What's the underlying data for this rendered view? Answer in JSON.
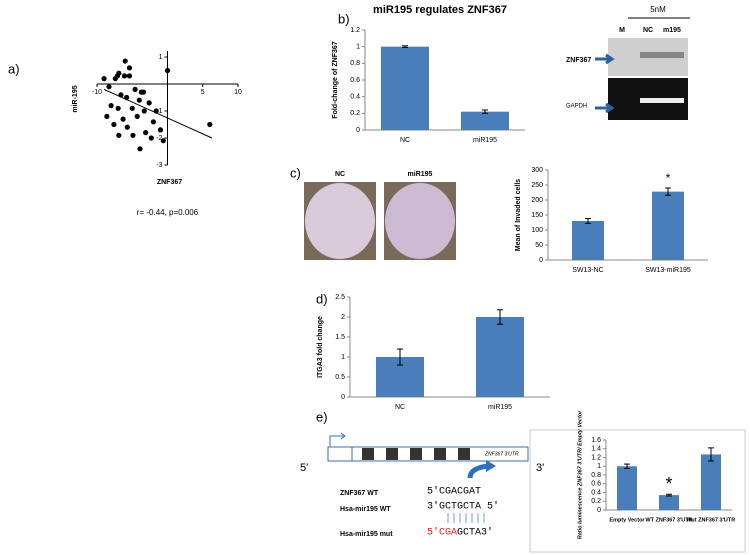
{
  "panels": {
    "a": "a)",
    "b": "b)",
    "c": "c)",
    "d": "d)",
    "e": "e)"
  },
  "blot": {
    "dose": "5nM",
    "lanes": [
      "M",
      "NC",
      "m195"
    ],
    "protein": "ZNF367",
    "control": "GAPDH"
  },
  "photos": [
    "NC",
    "miR195"
  ],
  "diagram": {
    "five_prime": "5'",
    "three_prime": "3'",
    "utr_label": "ZNF367 3'UTR",
    "rows": [
      "ZNF367 WT",
      "Hsa-mir195 WT",
      "Hsa-mir195 mut"
    ],
    "wt_seq": "5'CGACGAT",
    "mir_seq": "3'GCTGCTA 5'",
    "mut_seq_changed": "5'CGA",
    "mut_seq_rest": "GCTA3'"
  },
  "chart_data": [
    {
      "type": "scatter",
      "x_label": "ZNF367",
      "y_label": "miR-195",
      "annotation": "r= -0.44, p=0.006",
      "x": [
        -6,
        -5.4,
        -6.9,
        -7.1,
        -6.1,
        -5.4,
        -7.4,
        -9,
        -8.3,
        -4.6,
        -3.7,
        -6.6,
        -5.8,
        -4,
        -2.6,
        -8,
        -7,
        -5,
        -3.3,
        -1.6,
        -8.6,
        -6.3,
        -4.3,
        -2,
        -7.6,
        -5.7,
        -3.1,
        -1,
        -6.9,
        -4.9,
        -2.3,
        -3.9,
        -0.6,
        0,
        6,
        -3.4
      ],
      "y": [
        0.85,
        0.6,
        0.4,
        0.3,
        0.3,
        0.3,
        0.2,
        0.2,
        -0.1,
        -0.2,
        -0.3,
        -0.4,
        -0.5,
        -0.6,
        -0.7,
        -0.8,
        -0.9,
        -0.9,
        -1,
        -1,
        -1.2,
        -1.3,
        -1.2,
        -1.4,
        -1.5,
        -1.6,
        -1.8,
        -1.7,
        -1.9,
        -1.9,
        -2,
        -2.4,
        -2.1,
        0.5,
        -1.5,
        -0.3
      ],
      "trendline": {
        "x": [
          -9,
          6.3
        ],
        "y": [
          -0.2,
          -2.0
        ]
      },
      "xlim": [
        -10,
        10
      ],
      "ylim": [
        -3,
        1
      ],
      "xticks": [
        -10,
        5,
        10
      ],
      "yticks": [
        1,
        -1,
        -2,
        -3
      ],
      "color": "#000000"
    },
    {
      "type": "bar",
      "title": "miR195 regulates ZNF367",
      "y_label": "Fold-change of ZNF367",
      "categories": [
        "NC",
        "miR195"
      ],
      "values": [
        1,
        0.22
      ],
      "errors": [
        0.01,
        0.02
      ],
      "color": "#4a7ebb",
      "ylim": [
        0,
        1.2
      ],
      "yticks": [
        0,
        0.2,
        0.4,
        0.6,
        0.8,
        1,
        1.2
      ]
    },
    {
      "type": "bar",
      "y_label": "Mean of Invaded cells",
      "significance": "*",
      "categories": [
        "SW13-NC",
        "SW13-miR195"
      ],
      "values": [
        130,
        228
      ],
      "errors": [
        8,
        12
      ],
      "color": "#4a7ebb",
      "ylim": [
        0,
        300
      ],
      "yticks": [
        0,
        50,
        100,
        150,
        200,
        250,
        300
      ]
    },
    {
      "type": "bar",
      "y_label": "ITGA3 fold change",
      "categories": [
        "NC",
        "miR195"
      ],
      "values": [
        1,
        2
      ],
      "errors": [
        0.2,
        0.18
      ],
      "color": "#4a7ebb",
      "ylim": [
        0,
        2.5
      ],
      "yticks": [
        0,
        0.5,
        1,
        1.5,
        2,
        2.5
      ]
    },
    {
      "type": "bar",
      "y_label": "Ratio luminescence ZNF367 3'UTR/ Empty Vector",
      "significance": "*",
      "categories": [
        "Empty Vector",
        "WT ZNF367 3'UTR",
        "Mut ZNF367 3'UTR"
      ],
      "values": [
        1,
        0.34,
        1.27
      ],
      "errors": [
        0.05,
        0.02,
        0.15
      ],
      "color": "#4a7ebb",
      "ylim": [
        0,
        1.6
      ],
      "yticks": [
        0,
        0.2,
        0.4,
        0.6,
        0.8,
        1,
        1.2,
        1.4,
        1.6
      ]
    }
  ]
}
